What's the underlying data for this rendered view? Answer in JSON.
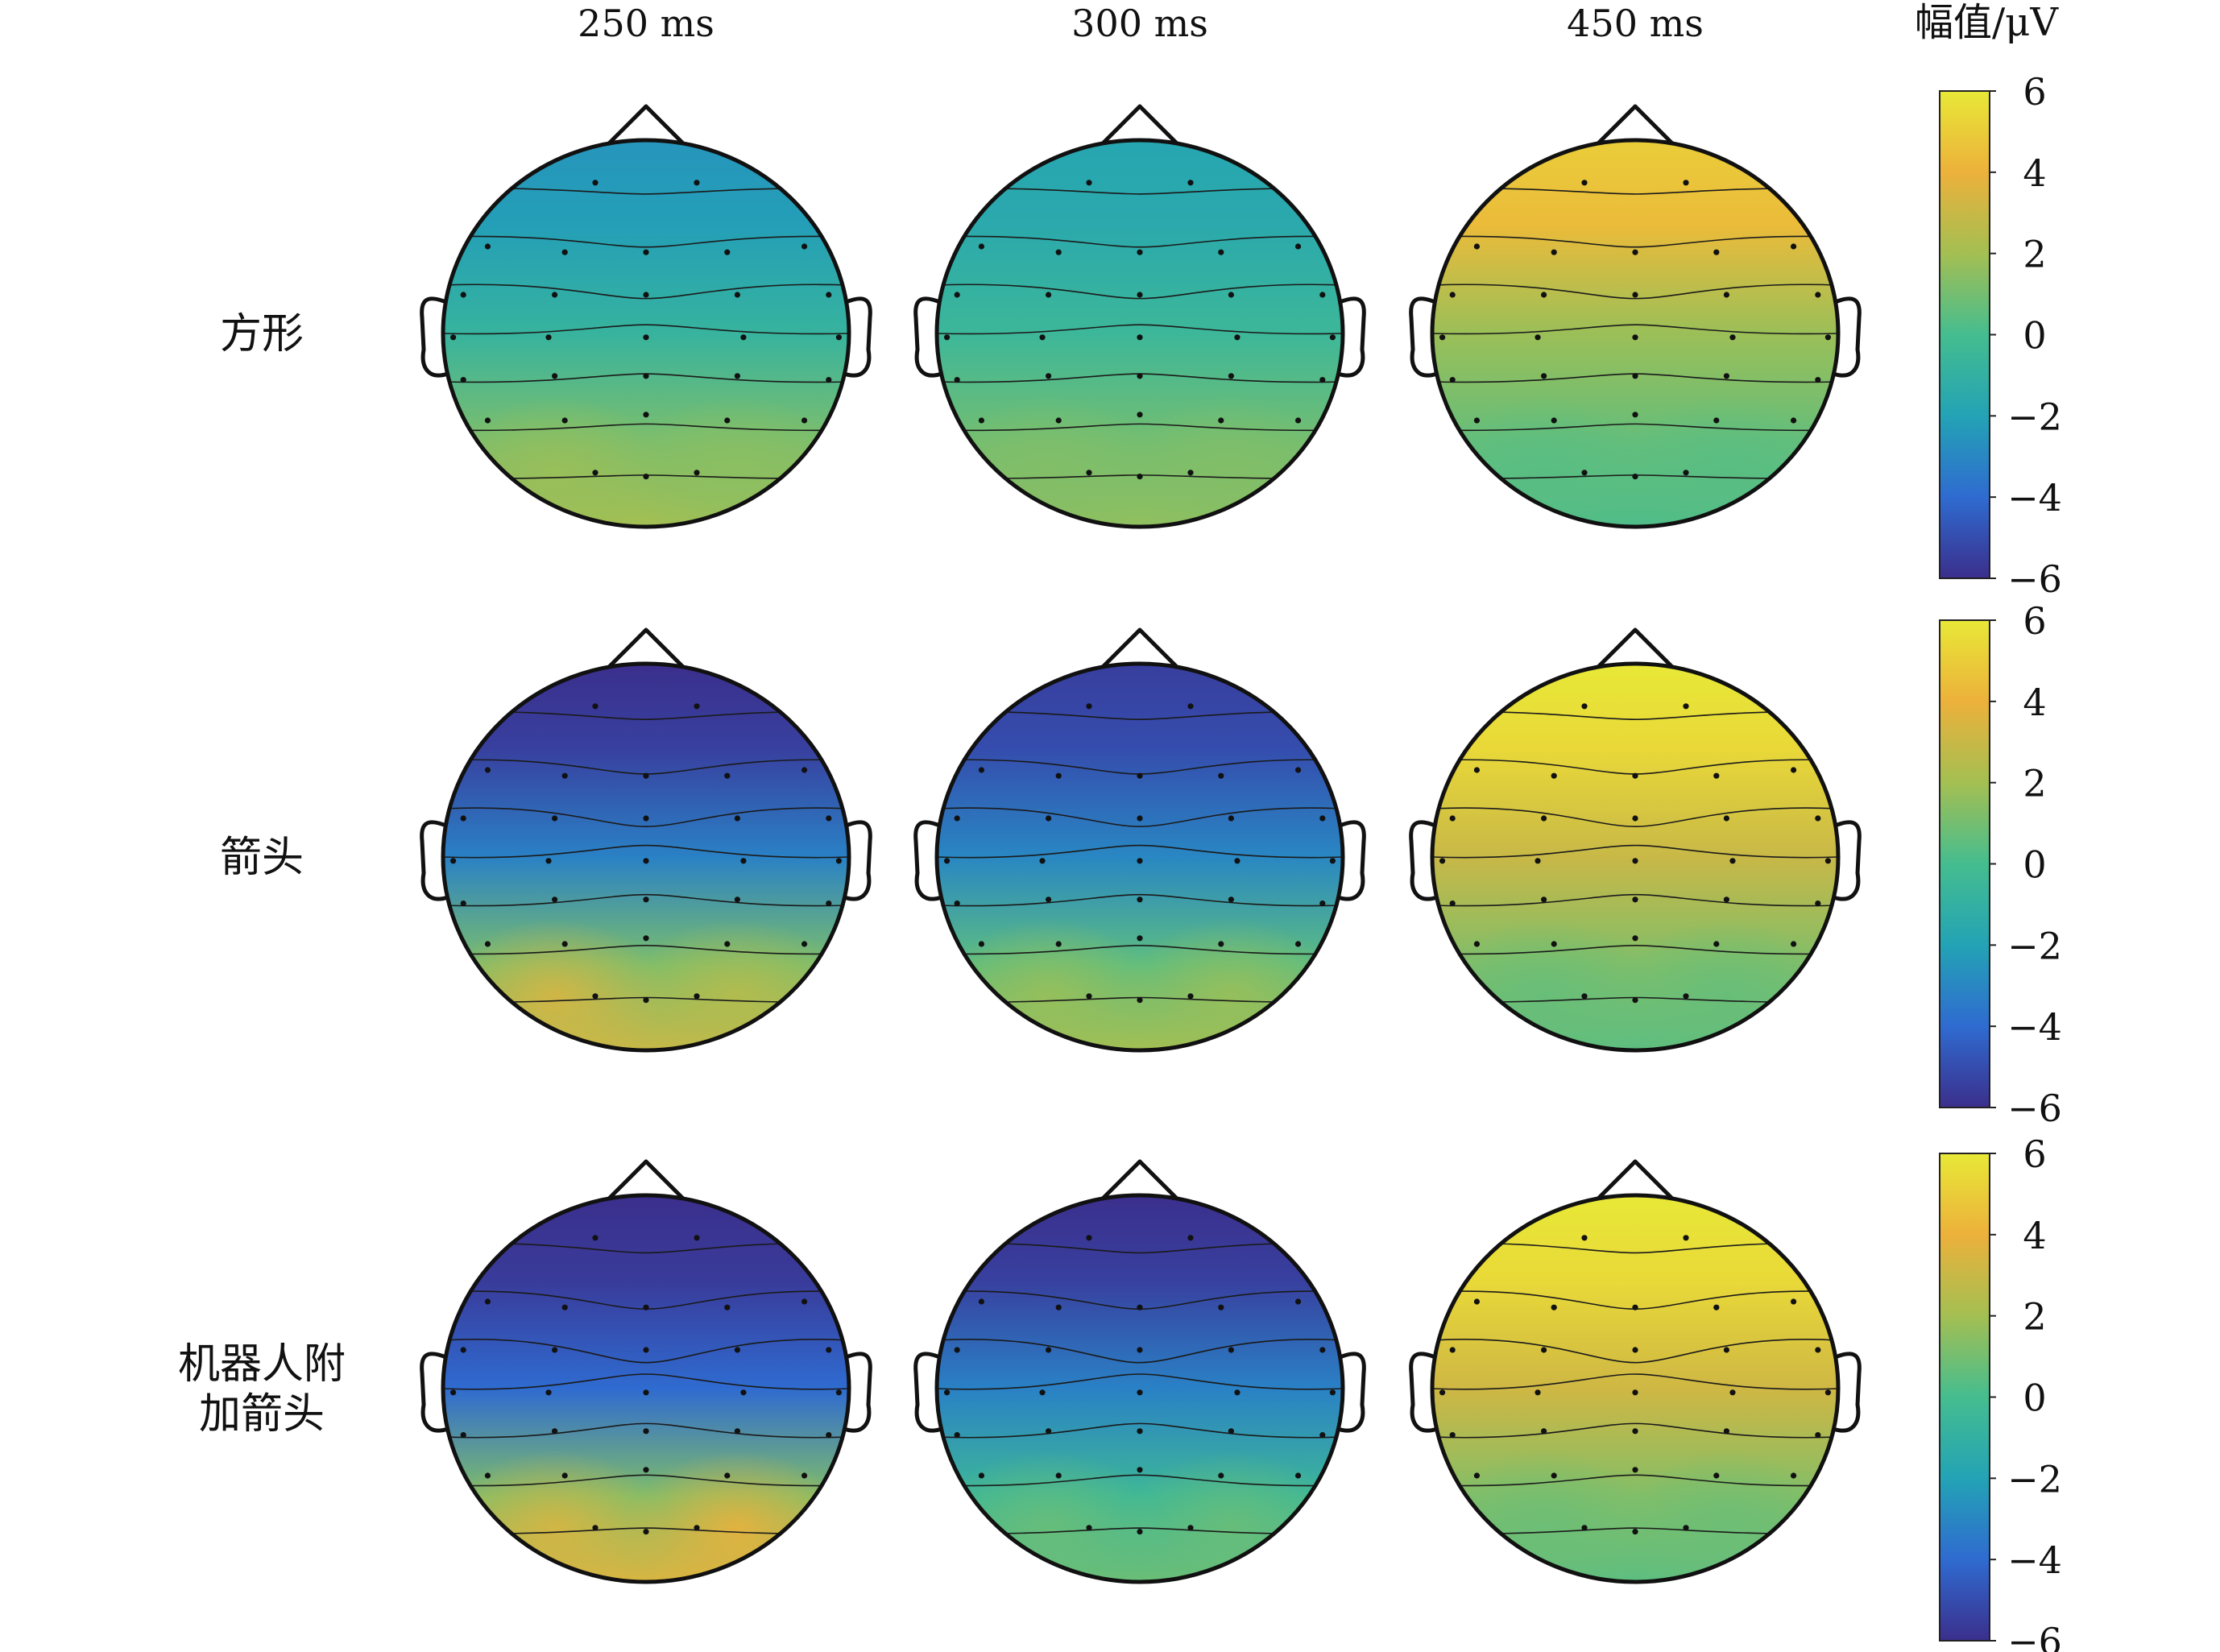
{
  "chart_data": {
    "type": "heatmap",
    "title": "",
    "columns": [
      "250 ms",
      "300 ms",
      "450 ms"
    ],
    "rows": [
      "方形",
      "箭头",
      "机器人附\n加箭头"
    ],
    "colorbar": {
      "label": "幅值/μV",
      "range": [
        -6,
        6
      ],
      "ticks": [
        "6",
        "4",
        "2",
        "0",
        "−2",
        "−4",
        "−6"
      ],
      "colors": [
        "#3b2f8c",
        "#2f6bd0",
        "#23a3b5",
        "#45bd8f",
        "#a4bf52",
        "#ecb13b",
        "#e8e837"
      ]
    },
    "maps": [
      [
        {
          "time": "250 ms",
          "frontal": -2.5,
          "central": -0.8,
          "occipital": 2.0,
          "occ_left": 1.8,
          "occ_right": 1.5
        },
        {
          "time": "300 ms",
          "frontal": -1.8,
          "central": -0.5,
          "occipital": 1.6,
          "occ_left": 1.3,
          "occ_right": 1.3
        },
        {
          "time": "450 ms",
          "frontal": 5.0,
          "central": 1.8,
          "occipital": 0.2,
          "occ_left": 0.4,
          "occ_right": 0.4
        }
      ],
      [
        {
          "time": "250 ms",
          "frontal": -6.0,
          "central": -3.2,
          "occipital": 3.0,
          "occ_left": 3.5,
          "occ_right": 2.5
        },
        {
          "time": "300 ms",
          "frontal": -5.5,
          "central": -3.0,
          "occipital": 2.0,
          "occ_left": 1.8,
          "occ_right": 1.8
        },
        {
          "time": "450 ms",
          "frontal": 6.0,
          "central": 3.0,
          "occipital": 0.5,
          "occ_left": 0.7,
          "occ_right": 0.7
        }
      ],
      [
        {
          "time": "250 ms",
          "frontal": -6.0,
          "central": -4.0,
          "occipital": 3.5,
          "occ_left": 3.5,
          "occ_right": 4.0
        },
        {
          "time": "300 ms",
          "frontal": -6.0,
          "central": -3.2,
          "occipital": 0.8,
          "occ_left": 0.8,
          "occ_right": 0.8
        },
        {
          "time": "450 ms",
          "frontal": 6.0,
          "central": 3.2,
          "occipital": 0.5,
          "occ_left": 0.8,
          "occ_right": 0.8
        }
      ]
    ]
  }
}
